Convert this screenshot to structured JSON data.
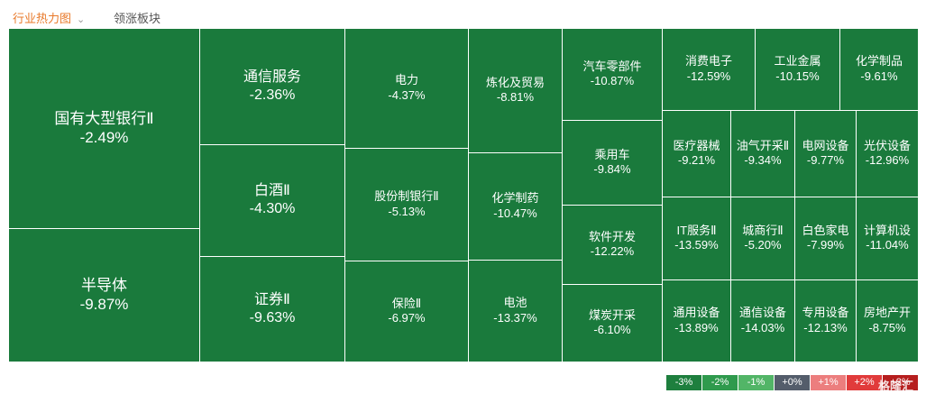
{
  "tabs": {
    "active": "行业热力图",
    "inactive": "领涨板块"
  },
  "colors": {
    "cell_green": "#1a7a3c"
  },
  "cells": [
    {
      "name": "国有大型银行Ⅱ",
      "pct": "-2.49%"
    },
    {
      "name": "半导体",
      "pct": "-9.87%"
    },
    {
      "name": "通信服务",
      "pct": "-2.36%"
    },
    {
      "name": "白酒Ⅱ",
      "pct": "-4.30%"
    },
    {
      "name": "证券Ⅱ",
      "pct": "-9.63%"
    },
    {
      "name": "电力",
      "pct": "-4.37%"
    },
    {
      "name": "股份制银行Ⅱ",
      "pct": "-5.13%"
    },
    {
      "name": "保险Ⅱ",
      "pct": "-6.97%"
    },
    {
      "name": "炼化及贸易",
      "pct": "-8.81%"
    },
    {
      "name": "化学制药",
      "pct": "-10.47%"
    },
    {
      "name": "电池",
      "pct": "-13.37%"
    },
    {
      "name": "汽车零部件",
      "pct": "-10.87%"
    },
    {
      "name": "乘用车",
      "pct": "-9.84%"
    },
    {
      "name": "软件开发",
      "pct": "-12.22%"
    },
    {
      "name": "煤炭开采",
      "pct": "-6.10%"
    },
    {
      "name": "消费电子",
      "pct": "-12.59%"
    },
    {
      "name": "工业金属",
      "pct": "-10.15%"
    },
    {
      "name": "化学制品",
      "pct": "-9.61%"
    },
    {
      "name": "医疗器械",
      "pct": "-9.21%"
    },
    {
      "name": "油气开采Ⅱ",
      "pct": "-9.34%"
    },
    {
      "name": "电网设备",
      "pct": "-9.77%"
    },
    {
      "name": "光伏设备",
      "pct": "-12.96%"
    },
    {
      "name": "IT服务Ⅱ",
      "pct": "-13.59%"
    },
    {
      "name": "城商行Ⅱ",
      "pct": "-5.20%"
    },
    {
      "name": "白色家电",
      "pct": "-7.99%"
    },
    {
      "name": "计算机设",
      "pct": "-11.04%"
    },
    {
      "name": "通用设备",
      "pct": "-13.89%"
    },
    {
      "name": "通信设备",
      "pct": "-14.03%"
    },
    {
      "name": "专用设备",
      "pct": "-12.13%"
    },
    {
      "name": "房地产开",
      "pct": "-8.75%"
    }
  ],
  "legend": [
    {
      "label": "-3%",
      "color": "#1e7f3e"
    },
    {
      "label": "-2%",
      "color": "#2f9a4d"
    },
    {
      "label": "-1%",
      "color": "#52b567"
    },
    {
      "label": "+0%",
      "color": "#545d6b"
    },
    {
      "label": "+1%",
      "color": "#ec7e7e"
    },
    {
      "label": "+2%",
      "color": "#e13b3b"
    },
    {
      "label": "+3%",
      "color": "#b61e1e"
    }
  ],
  "watermark": "格隆汇"
}
